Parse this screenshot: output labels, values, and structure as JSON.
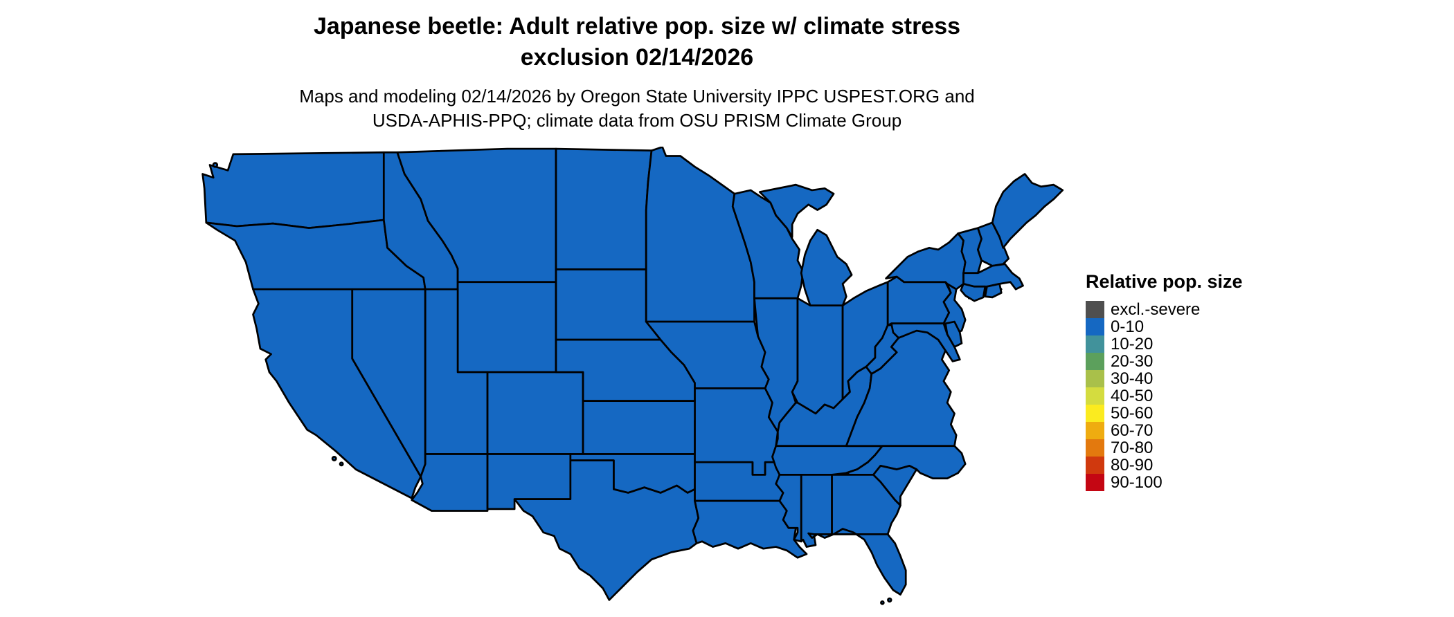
{
  "title": {
    "line1": "Japanese beetle: Adult relative pop. size w/ climate stress",
    "line2": "exclusion 02/14/2026"
  },
  "subtitle": {
    "line1": "Maps and modeling 02/14/2026 by Oregon State University IPPC USPEST.ORG and",
    "line2": "USDA-APHIS-PPQ; climate data from OSU PRISM Climate Group"
  },
  "legend": {
    "title": "Relative pop. size",
    "items": [
      {
        "label": "excl.-severe",
        "color": "#4F4F4F"
      },
      {
        "label": "0-10",
        "color": "#1568C2"
      },
      {
        "label": "10-20",
        "color": "#41929B"
      },
      {
        "label": "20-30",
        "color": "#5CA05C"
      },
      {
        "label": "30-40",
        "color": "#A9C04A"
      },
      {
        "label": "40-50",
        "color": "#D4DC3F"
      },
      {
        "label": "50-60",
        "color": "#FBEB1F"
      },
      {
        "label": "60-70",
        "color": "#EFAC10"
      },
      {
        "label": "70-80",
        "color": "#E3790E"
      },
      {
        "label": "80-90",
        "color": "#D0390E"
      },
      {
        "label": "90-100",
        "color": "#C40613"
      }
    ]
  },
  "map": {
    "region": "Contiguous United States",
    "fill_color": "#1568C2",
    "border_color": "#000000",
    "value_category": "0-10"
  }
}
